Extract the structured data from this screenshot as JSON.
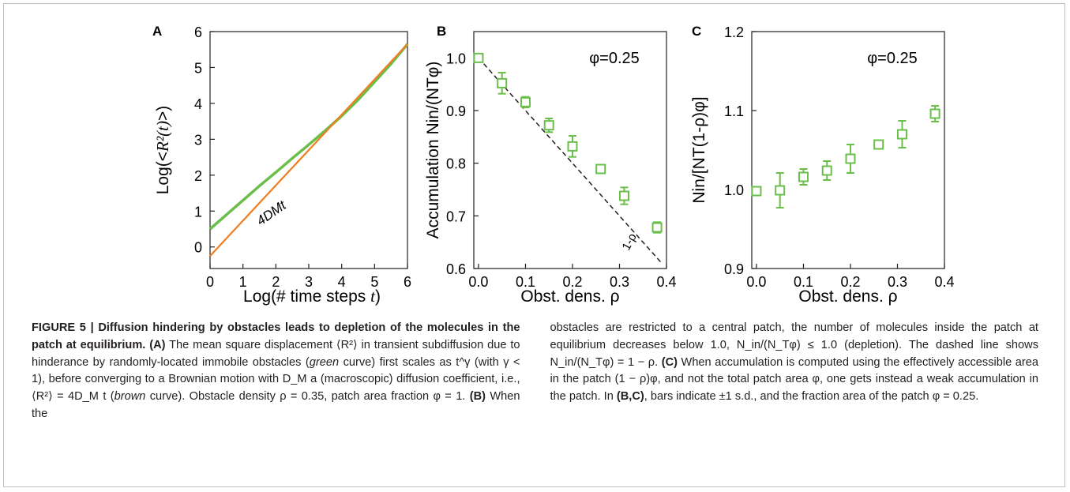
{
  "figure": {
    "panels": [
      {
        "letter": "A",
        "xlabel_pre": "Log(# time steps ",
        "xlabel_var": "t",
        "xlabel_post": ")",
        "ylabel_pre": "Log(<",
        "ylabel_var": "R²(t)",
        "ylabel_post": ">)",
        "xticks": [
          "0",
          "1",
          "2",
          "3",
          "4",
          "5",
          "6"
        ],
        "yticks": [
          "0",
          "1",
          "2",
          "3",
          "4",
          "5",
          "6"
        ],
        "annotation": "4DMt"
      },
      {
        "letter": "B",
        "ylabel": "Accumulation Nin/(NTφ)",
        "xlabel": "Obst. dens. ρ",
        "inset": "φ=0.25",
        "line_label": "1-ρ",
        "xticks": [
          "0.0",
          "0.1",
          "0.2",
          "0.3",
          "0.4"
        ],
        "yticks": [
          "0.6",
          "0.7",
          "0.8",
          "0.9",
          "1.0"
        ]
      },
      {
        "letter": "C",
        "ylabel": "Nin/[NT(1-ρ)φ]",
        "xlabel": "Obst. dens. ρ",
        "inset": "φ=0.25",
        "xticks": [
          "0.0",
          "0.1",
          "0.2",
          "0.3",
          "0.4"
        ],
        "yticks": [
          "0.9",
          "1.0",
          "1.1",
          "1.2"
        ]
      }
    ]
  },
  "chart_data": [
    {
      "type": "line",
      "panel": "A",
      "xlim": [
        0,
        6
      ],
      "ylim": [
        -0.6,
        6
      ],
      "series": [
        {
          "color": "#6abf4b",
          "x": [
            0,
            0.5,
            1,
            1.5,
            2,
            2.5,
            3,
            3.5,
            4,
            4.5,
            5,
            5.5,
            6
          ],
          "y": [
            0.5,
            0.9,
            1.3,
            1.7,
            2.08,
            2.47,
            2.85,
            3.24,
            3.65,
            4.1,
            4.6,
            5.1,
            5.65
          ]
        },
        {
          "color": "#ef7d22",
          "x": [
            0,
            6
          ],
          "y": [
            -0.25,
            5.65
          ]
        }
      ],
      "grid": false
    },
    {
      "type": "scatter",
      "panel": "B",
      "xlim": [
        -0.01,
        0.4
      ],
      "ylim": [
        0.6,
        1.05
      ],
      "x": [
        0.0,
        0.05,
        0.1,
        0.15,
        0.2,
        0.26,
        0.31,
        0.38
      ],
      "y": [
        1.0,
        0.952,
        0.916,
        0.872,
        0.832,
        0.789,
        0.738,
        0.678
      ],
      "err": [
        0.005,
        0.02,
        0.01,
        0.013,
        0.02,
        0.006,
        0.016,
        0.01
      ],
      "line": {
        "x": [
          0,
          0.39
        ],
        "y": [
          1.0,
          0.61
        ]
      },
      "color": "#6abf4b",
      "grid": false
    },
    {
      "type": "scatter",
      "panel": "C",
      "xlim": [
        -0.01,
        0.4
      ],
      "ylim": [
        0.9,
        1.2
      ],
      "x": [
        0.0,
        0.05,
        0.1,
        0.15,
        0.2,
        0.26,
        0.31,
        0.38
      ],
      "y": [
        0.998,
        0.999,
        1.016,
        1.024,
        1.039,
        1.057,
        1.07,
        1.096
      ],
      "err": [
        0.005,
        0.022,
        0.01,
        0.012,
        0.018,
        0.005,
        0.017,
        0.01
      ],
      "color": "#6abf4b",
      "grid": false
    }
  ],
  "caption": {
    "col1": [
      {
        "t": "FIGURE 5 | Diffusion hindering by obstacles leads to depletion of the molecules in the patch at equilibrium. ",
        "b": true
      },
      {
        "t": "(A)",
        "b": true
      },
      {
        "t": " The mean square displacement ⟨R²⟩ in transient subdiffusion due to hinderance by randomly-located immobile obstacles ("
      },
      {
        "t": "green",
        "i": true
      },
      {
        "t": " curve) first scales as t^γ (with γ < 1), before converging to a Brownian motion with D_M a (macroscopic) diffusion coefficient, i.e., ⟨R²⟩ = 4D_M t ("
      },
      {
        "t": "brown",
        "i": true
      },
      {
        "t": " curve). Obstacle density ρ = 0.35, patch area fraction φ = 1. "
      },
      {
        "t": "(B)",
        "b": true
      },
      {
        "t": " When the"
      }
    ],
    "col2": [
      {
        "t": "obstacles are restricted to a central patch, the number of molecules inside the patch at equilibrium decreases below 1.0, N_in/(N_Tφ) ≤ 1.0 (depletion). The dashed line shows N_in/(N_Tφ) = 1 − ρ. "
      },
      {
        "t": "(C)",
        "b": true
      },
      {
        "t": " When accumulation is computed using the effectively accessible area in the patch (1 − ρ)φ, and not the total patch area φ, one gets instead a weak accumulation in the patch. In "
      },
      {
        "t": "(B,C)",
        "b": true
      },
      {
        "t": ", bars indicate ±1 s.d., and the fraction area of the patch φ = 0.25."
      }
    ]
  }
}
